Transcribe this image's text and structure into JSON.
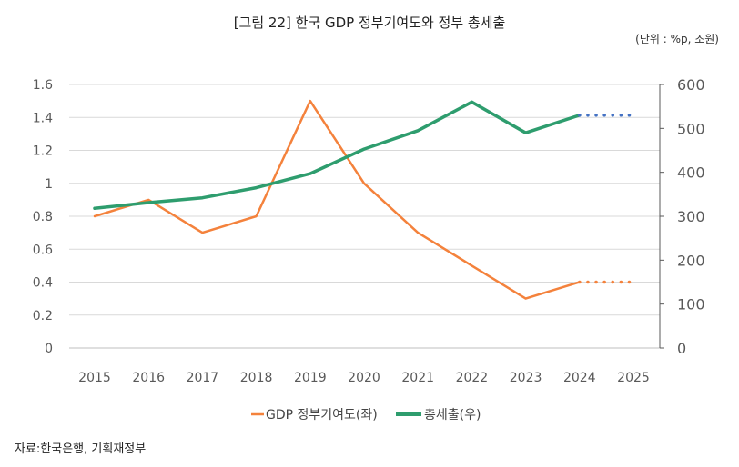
{
  "title": "[그림 22] 한국 GDP 정부기여도와 정부 총세출",
  "unit_note": "(단위 : %p, 조원)",
  "source": "자료:한국은행, 기획재정부",
  "chart_data": {
    "type": "line",
    "categories": [
      "2015",
      "2016",
      "2017",
      "2018",
      "2019",
      "2020",
      "2021",
      "2022",
      "2023",
      "2024",
      "2025"
    ],
    "y_left": {
      "ticks": [
        "0",
        "0.2",
        "0.4",
        "0.6",
        "0.8",
        "1",
        "1.2",
        "1.4",
        "1.6"
      ],
      "ylim": [
        0,
        1.6
      ]
    },
    "y_right": {
      "ticks": [
        "0",
        "100",
        "200",
        "300",
        "400",
        "500",
        "600"
      ],
      "ylim": [
        0,
        600
      ]
    },
    "grid": true,
    "legend_position": "bottom",
    "series": [
      {
        "name": "GDP 정부기여도(좌)",
        "axis": "left",
        "color": "#F4823C",
        "values": [
          0.8,
          0.9,
          0.7,
          0.8,
          1.5,
          1.0,
          0.7,
          0.5,
          0.3,
          0.4,
          null
        ],
        "projection": [
          null,
          null,
          null,
          null,
          null,
          null,
          null,
          null,
          null,
          0.4,
          0.4
        ]
      },
      {
        "name": "총세출(우)",
        "axis": "right",
        "color": "#2E9D6E",
        "projection_color": "#4472C4",
        "values": [
          318,
          331,
          342,
          365,
          397,
          453,
          495,
          560,
          490,
          530,
          null
        ],
        "projection": [
          null,
          null,
          null,
          null,
          null,
          null,
          null,
          null,
          null,
          530,
          530
        ]
      }
    ]
  }
}
